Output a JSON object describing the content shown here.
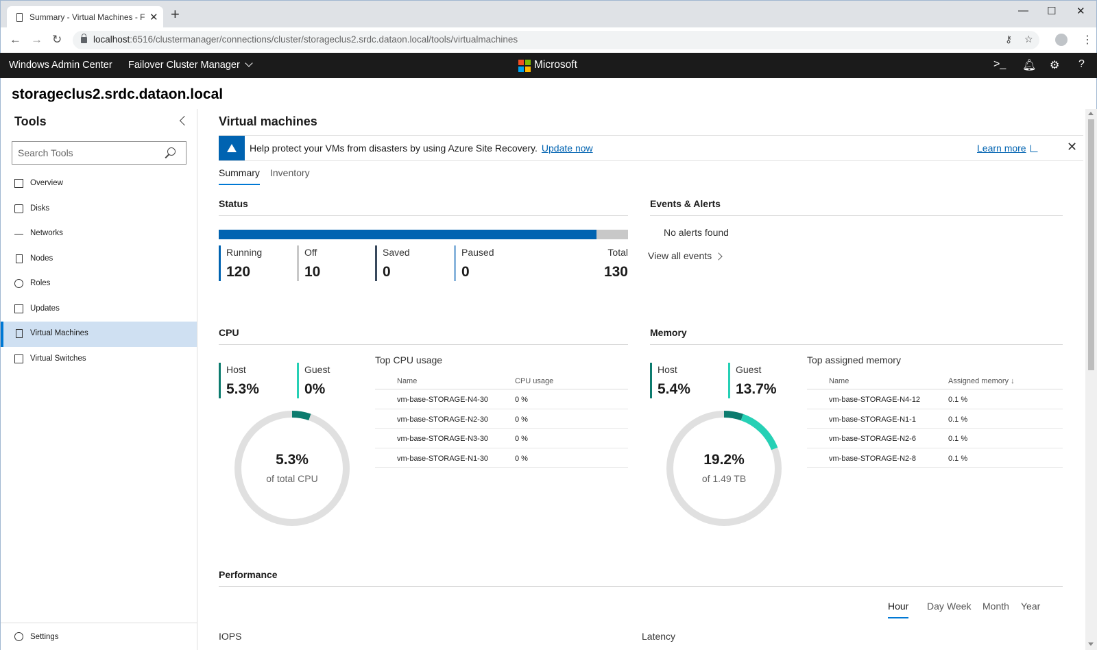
{
  "browser": {
    "tab_title": "Summary - Virtual Machines - Fa",
    "url_host": "localhost",
    "url_path": ":6516/clustermanager/connections/cluster/storageclus2.srdc.dataon.local/tools/virtualmachines"
  },
  "header": {
    "app_title": "Windows Admin Center",
    "switcher": "Failover Cluster Manager",
    "brand": "Microsoft"
  },
  "cluster_name": "storageclus2.srdc.dataon.local",
  "sidebar": {
    "title": "Tools",
    "search_placeholder": "Search Tools",
    "items": [
      {
        "label": "Overview",
        "icon": "overview-icon"
      },
      {
        "label": "Disks",
        "icon": "disk-icon"
      },
      {
        "label": "Networks",
        "icon": "network-icon"
      },
      {
        "label": "Nodes",
        "icon": "server-icon"
      },
      {
        "label": "Roles",
        "icon": "gear-icon"
      },
      {
        "label": "Updates",
        "icon": "update-icon"
      },
      {
        "label": "Virtual Machines",
        "icon": "vm-icon",
        "active": true
      },
      {
        "label": "Virtual Switches",
        "icon": "switch-icon"
      }
    ],
    "settings_label": "Settings"
  },
  "main": {
    "title": "Virtual machines",
    "banner": {
      "text": "Help protect your VMs from disasters by using Azure Site Recovery.",
      "link": "Update now",
      "learn_more": "Learn more"
    },
    "tabs": [
      "Summary",
      "Inventory"
    ],
    "status": {
      "title": "Status",
      "running_fraction": 0.923,
      "running_label": "Running",
      "running": "120",
      "off_label": "Off",
      "off": "10",
      "saved_label": "Saved",
      "saved": "0",
      "paused_label": "Paused",
      "paused": "0",
      "total_label": "Total",
      "total": "130"
    },
    "events": {
      "title": "Events & Alerts",
      "none": "No alerts found",
      "view_all": "View all events"
    },
    "cpu": {
      "title": "CPU",
      "host_label": "Host",
      "host": "5.3%",
      "guest_label": "Guest",
      "guest": "0%",
      "donut_value": "5.3%",
      "donut_sub": "of total CPU",
      "fraction": 0.053,
      "table_title": "Top CPU usage",
      "col_name": "Name",
      "col_usage": "CPU usage",
      "rows": [
        {
          "name": "vm-base-STORAGE-N4-30",
          "value": "0 %"
        },
        {
          "name": "vm-base-STORAGE-N2-30",
          "value": "0 %"
        },
        {
          "name": "vm-base-STORAGE-N3-30",
          "value": "0 %"
        },
        {
          "name": "vm-base-STORAGE-N1-30",
          "value": "0 %"
        }
      ]
    },
    "memory": {
      "title": "Memory",
      "host_label": "Host",
      "host": "5.4%",
      "guest_label": "Guest",
      "guest": "13.7%",
      "donut_value": "19.2%",
      "donut_sub": "of 1.49 TB",
      "host_fraction": 0.054,
      "guest_fraction": 0.137,
      "table_title": "Top assigned memory",
      "col_name": "Name",
      "col_usage": "Assigned memory ↓",
      "rows": [
        {
          "name": "vm-base-STORAGE-N4-12",
          "value": "0.1 %"
        },
        {
          "name": "vm-base-STORAGE-N1-1",
          "value": "0.1 %"
        },
        {
          "name": "vm-base-STORAGE-N2-6",
          "value": "0.1 %"
        },
        {
          "name": "vm-base-STORAGE-N2-8",
          "value": "0.1 %"
        }
      ]
    },
    "performance": {
      "title": "Performance",
      "ranges": [
        "Hour",
        "Day",
        "Week",
        "Month",
        "Year"
      ],
      "active_range": "Hour",
      "iops_label": "IOPS",
      "latency_label": "Latency"
    }
  },
  "colors": {
    "accent": "#0078d4",
    "running": "#0063b1",
    "off": "#c8c8c8",
    "saved": "#38485c",
    "paused": "#8ab5dc",
    "host": "#0c7b6e",
    "guest": "#26d0b5",
    "donut_track": "#e0e0e0"
  }
}
